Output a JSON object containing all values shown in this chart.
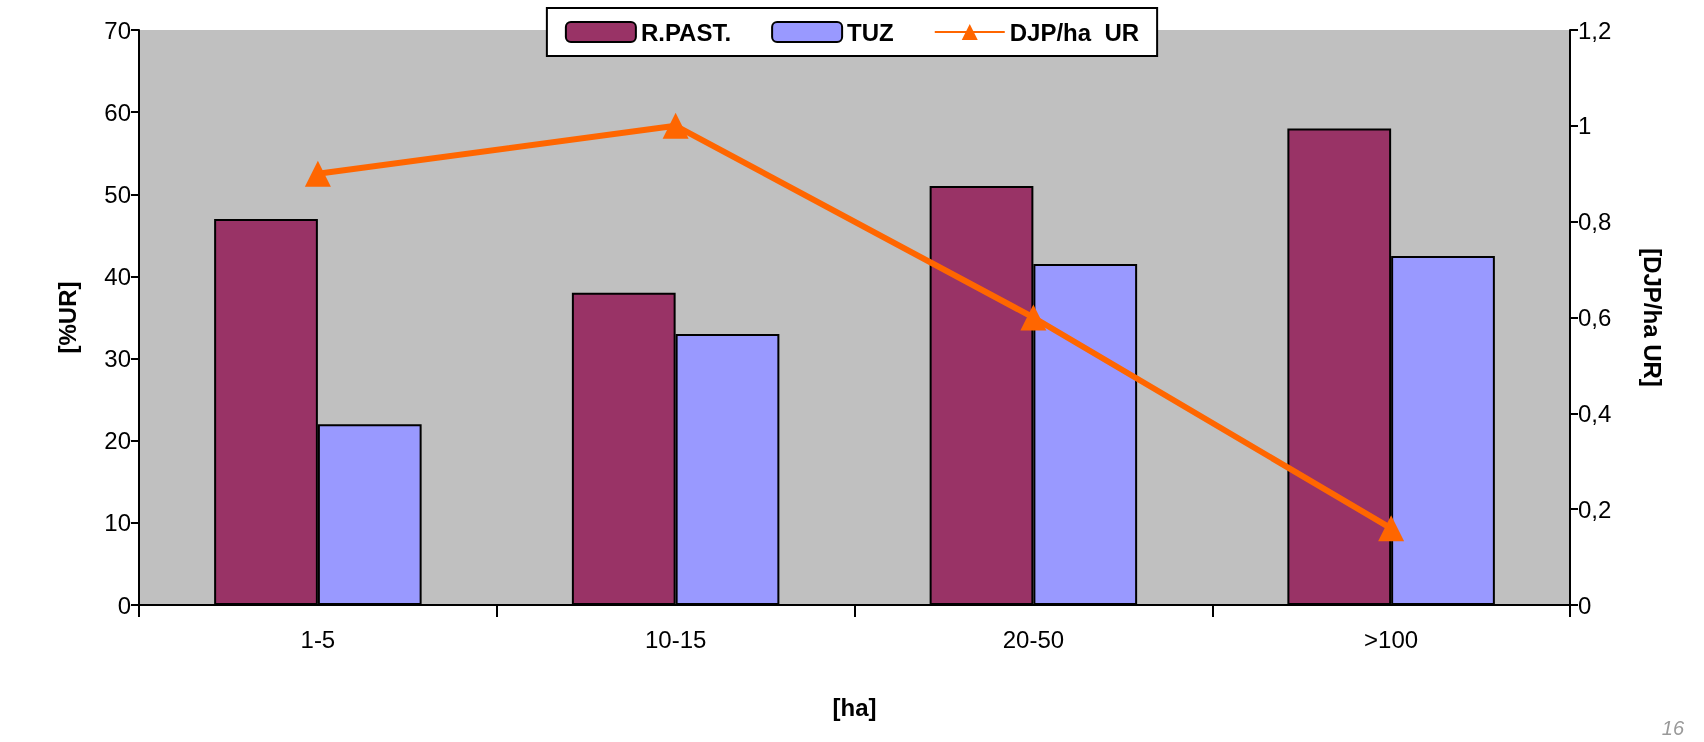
{
  "chart_data": {
    "type": "bar",
    "xlabel": "[ha]",
    "ylabel": "[%UR]",
    "y2label": "[DJP/ha UR]",
    "categories": [
      "1-5",
      "10-15",
      "20-50",
      ">100"
    ],
    "series": [
      {
        "name": "R.PAST.",
        "color": "#993366",
        "values": [
          47,
          38,
          51,
          58
        ]
      },
      {
        "name": "TUZ",
        "color": "#9999ff",
        "values": [
          22,
          33,
          41.5,
          42.5
        ]
      },
      {
        "name": "DJP/ha  UR",
        "type": "line",
        "axis": "y2",
        "color": "#ff6600",
        "marker": "triangle",
        "values": [
          0.9,
          1.0,
          0.6,
          0.16
        ]
      }
    ],
    "ylim": [
      0,
      70
    ],
    "yticks": [
      0,
      10,
      20,
      30,
      40,
      50,
      60,
      70
    ],
    "y2lim": [
      0,
      1.2
    ],
    "y2ticks": [
      0,
      {
        "value": 0.2,
        "label": "0,2"
      },
      {
        "value": 0.4,
        "label": "0,4"
      },
      {
        "value": 0.6,
        "label": "0,6"
      },
      {
        "value": 0.8,
        "label": "0,8"
      },
      1,
      {
        "value": 1.2,
        "label": "1,2"
      }
    ],
    "grid": false,
    "legend": "top",
    "annotations": [
      "16"
    ]
  }
}
